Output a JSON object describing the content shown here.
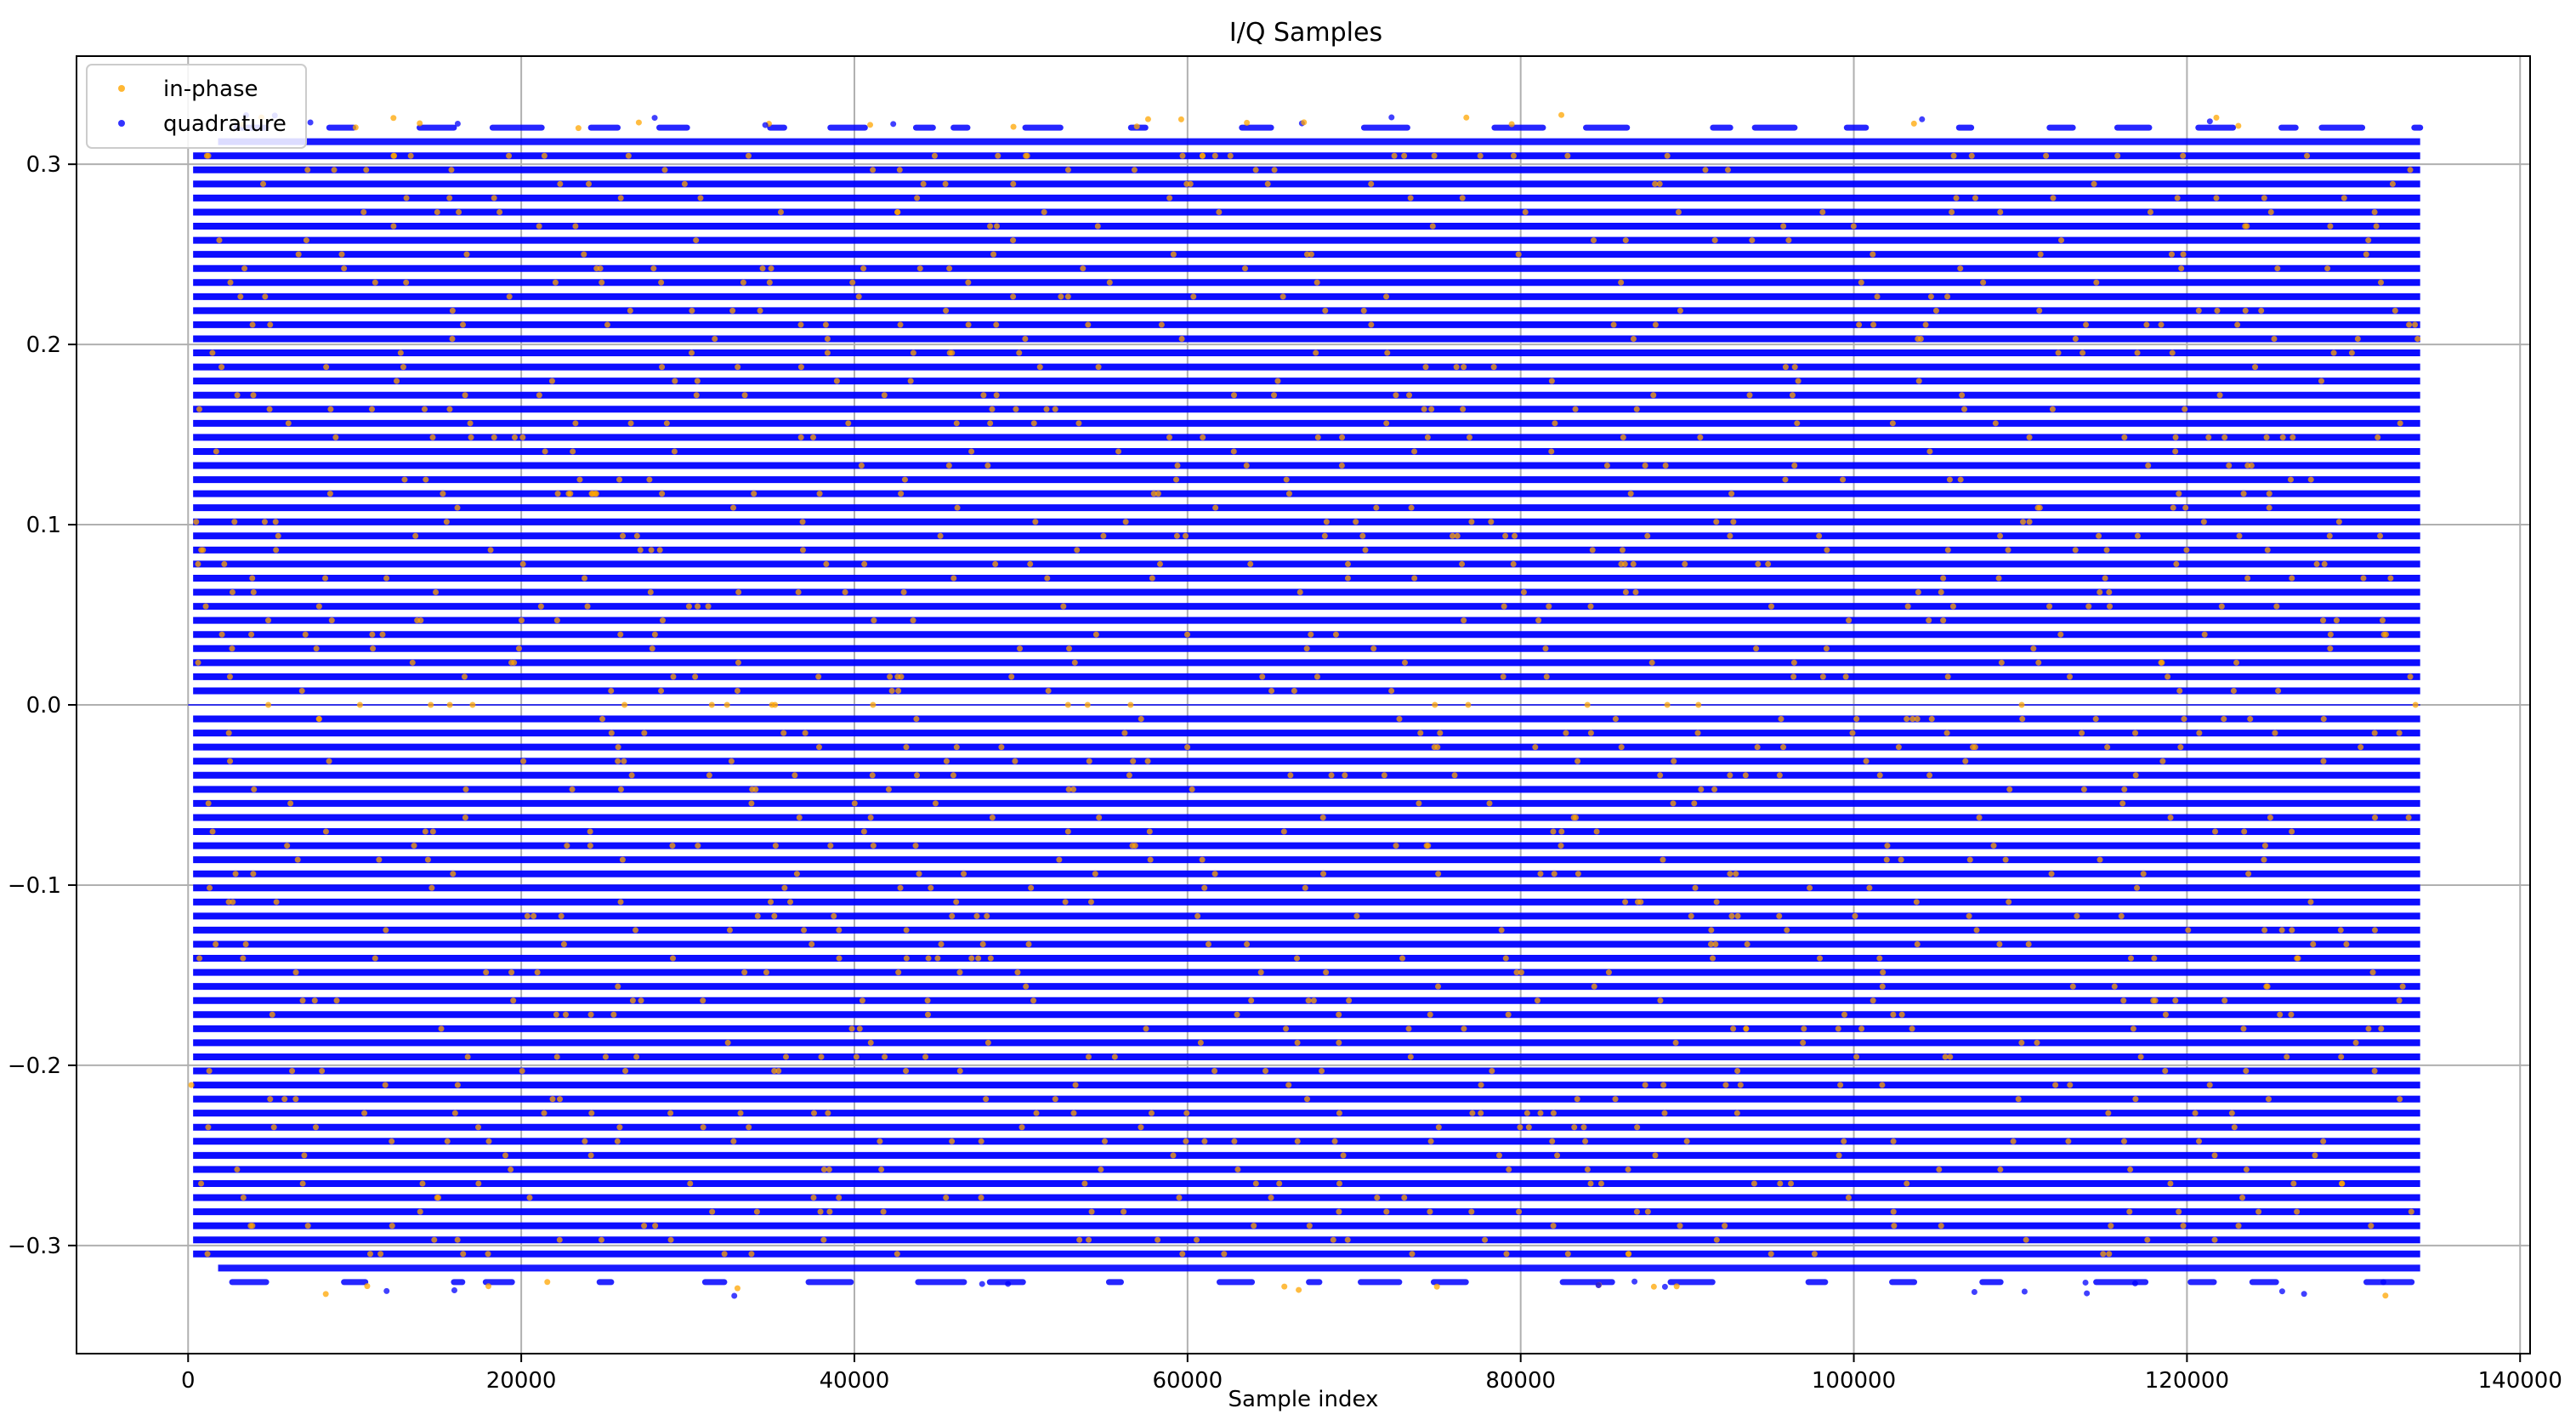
{
  "chart_data": {
    "type": "scatter",
    "title": "I/Q Samples",
    "xlabel": "Sample index",
    "ylabel": "",
    "xlim": [
      -6700,
      140600
    ],
    "ylim": [
      -0.36,
      0.36
    ],
    "x_ticks": [
      0,
      20000,
      40000,
      60000,
      80000,
      100000,
      120000,
      140000
    ],
    "x_tick_labels": [
      "0",
      "20000",
      "40000",
      "60000",
      "80000",
      "100000",
      "120000",
      "140000"
    ],
    "y_ticks": [
      -0.3,
      -0.2,
      -0.1,
      0.0,
      0.1,
      0.2,
      0.3
    ],
    "y_tick_labels": [
      "−0.3",
      "−0.2",
      "−0.1",
      "0.0",
      "0.1",
      "0.2",
      "0.3"
    ],
    "grid": true,
    "legend_position": "top-left",
    "sample_count": 134000,
    "value_range": [
      -0.328,
      0.328
    ],
    "quantization_step": 0.0078125,
    "series": [
      {
        "name": "in-phase",
        "color": "#ffa500",
        "marker": "dot",
        "alpha": 0.6
      },
      {
        "name": "quadrature",
        "color": "#0000ff",
        "marker": "dot",
        "alpha": 0.6
      }
    ]
  }
}
